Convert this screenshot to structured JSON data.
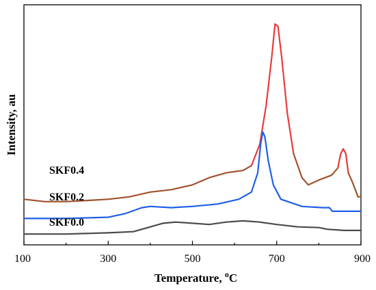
{
  "chart_data": {
    "type": "line",
    "xlabel": "Temperature, ",
    "xlabel_unit": "oC",
    "ylabel": "Intensity, au",
    "xlim": [
      100,
      900
    ],
    "x_ticks": [
      "100",
      "300",
      "500",
      "700",
      "900"
    ],
    "y_ticks_shown": false,
    "grid": false,
    "series": [
      {
        "name": "SKF0.4",
        "segments": [
          {
            "color": "#a0522d",
            "points": [
              [
                100,
                0.81
              ],
              [
                150,
                0.82
              ],
              [
                200,
                0.82
              ],
              [
                250,
                0.815
              ],
              [
                300,
                0.81
              ],
              [
                350,
                0.8
              ],
              [
                400,
                0.78
              ],
              [
                450,
                0.77
              ],
              [
                500,
                0.75
              ],
              [
                540,
                0.72
              ],
              [
                580,
                0.7
              ],
              [
                620,
                0.69
              ],
              [
                640,
                0.67
              ]
            ]
          },
          {
            "color": "#e83a3a",
            "points": [
              [
                640,
                0.67
              ],
              [
                660,
                0.58
              ],
              [
                675,
                0.42
              ],
              [
                688,
                0.22
              ],
              [
                696,
                0.08
              ],
              [
                703,
                0.09
              ],
              [
                712,
                0.22
              ],
              [
                725,
                0.45
              ],
              [
                740,
                0.62
              ]
            ]
          },
          {
            "color": "#a0522d",
            "points": [
              [
                740,
                0.62
              ],
              [
                760,
                0.72
              ],
              [
                775,
                0.75
              ],
              [
                800,
                0.73
              ],
              [
                830,
                0.71
              ],
              [
                845,
                0.68
              ]
            ]
          },
          {
            "color": "#e83a3a",
            "points": [
              [
                845,
                0.68
              ],
              [
                852,
                0.62
              ],
              [
                858,
                0.6
              ],
              [
                864,
                0.62
              ],
              [
                870,
                0.7
              ]
            ]
          },
          {
            "color": "#a0522d",
            "points": [
              [
                870,
                0.7
              ],
              [
                880,
                0.74
              ],
              [
                893,
                0.8
              ],
              [
                900,
                0.8
              ]
            ]
          }
        ]
      },
      {
        "name": "SKF0.2",
        "segments": [
          {
            "color": "#1e5fe8",
            "points": [
              [
                100,
                0.89
              ],
              [
                200,
                0.89
              ],
              [
                300,
                0.885
              ],
              [
                340,
                0.87
              ],
              [
                380,
                0.845
              ],
              [
                400,
                0.84
              ],
              [
                450,
                0.845
              ],
              [
                500,
                0.84
              ],
              [
                560,
                0.83
              ],
              [
                610,
                0.81
              ],
              [
                640,
                0.78
              ],
              [
                655,
                0.7
              ],
              [
                662,
                0.58
              ],
              [
                667,
                0.53
              ],
              [
                672,
                0.55
              ],
              [
                680,
                0.65
              ],
              [
                692,
                0.75
              ],
              [
                710,
                0.81
              ],
              [
                760,
                0.84
              ],
              [
                810,
                0.845
              ],
              [
                825,
                0.845
              ],
              [
                832,
                0.86
              ],
              [
                850,
                0.86
              ],
              [
                900,
                0.86
              ]
            ]
          }
        ]
      },
      {
        "name": "SKF0.0",
        "segments": [
          {
            "color": "#4a4a4a",
            "points": [
              [
                100,
                0.955
              ],
              [
                200,
                0.955
              ],
              [
                300,
                0.95
              ],
              [
                360,
                0.945
              ],
              [
                400,
                0.925
              ],
              [
                430,
                0.91
              ],
              [
                460,
                0.905
              ],
              [
                500,
                0.91
              ],
              [
                540,
                0.915
              ],
              [
                580,
                0.905
              ],
              [
                620,
                0.9
              ],
              [
                660,
                0.905
              ],
              [
                700,
                0.915
              ],
              [
                750,
                0.925
              ],
              [
                800,
                0.928
              ],
              [
                820,
                0.935
              ],
              [
                860,
                0.94
              ],
              [
                900,
                0.94
              ]
            ]
          }
        ]
      }
    ]
  }
}
